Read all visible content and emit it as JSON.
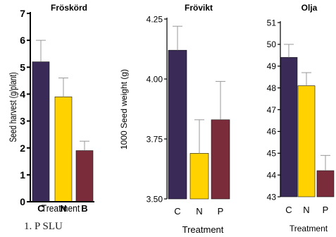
{
  "chart_data": [
    {
      "type": "bar",
      "title": "Fröskörd",
      "xlabel": "Treatment",
      "ylabel": "Seed harvest (g/plant)",
      "categories": [
        "C",
        "N",
        "B"
      ],
      "values": [
        5.2,
        3.9,
        1.9
      ],
      "errors": [
        0.8,
        0.7,
        0.35
      ],
      "ylim": [
        0,
        7
      ],
      "yticks": [
        "0",
        "1",
        "2",
        "3",
        "4",
        "5",
        "6",
        "7"
      ],
      "colors": [
        "#3a2a58",
        "#ffd200",
        "#7a2c3a"
      ]
    },
    {
      "type": "bar",
      "title": "Frövikt",
      "xlabel": "Treatment",
      "ylabel": "1000 Seed weight (g)",
      "categories": [
        "C",
        "N",
        "P"
      ],
      "values": [
        4.12,
        3.69,
        3.83
      ],
      "errors": [
        0.1,
        0.14,
        0.16
      ],
      "ylim": [
        3.5,
        4.25
      ],
      "yticks": [
        "3.50",
        "3.75",
        "4.00",
        "4.25"
      ],
      "colors": [
        "#3a2a58",
        "#ffd200",
        "#7a2c3a"
      ]
    },
    {
      "type": "bar",
      "title": "Olja",
      "xlabel": "Treatment",
      "ylabel": "",
      "categories": [
        "C",
        "N",
        "P"
      ],
      "values": [
        49.4,
        48.1,
        44.2
      ],
      "errors": [
        0.6,
        0.6,
        0.7
      ],
      "ylim": [
        43,
        51
      ],
      "yticks": [
        "43",
        "44",
        "45",
        "46",
        "47",
        "48",
        "49",
        "50",
        "51"
      ],
      "colors": [
        "#3a2a58",
        "#ffd200",
        "#7a2c3a"
      ]
    }
  ],
  "caption": "1.  P          SLU"
}
